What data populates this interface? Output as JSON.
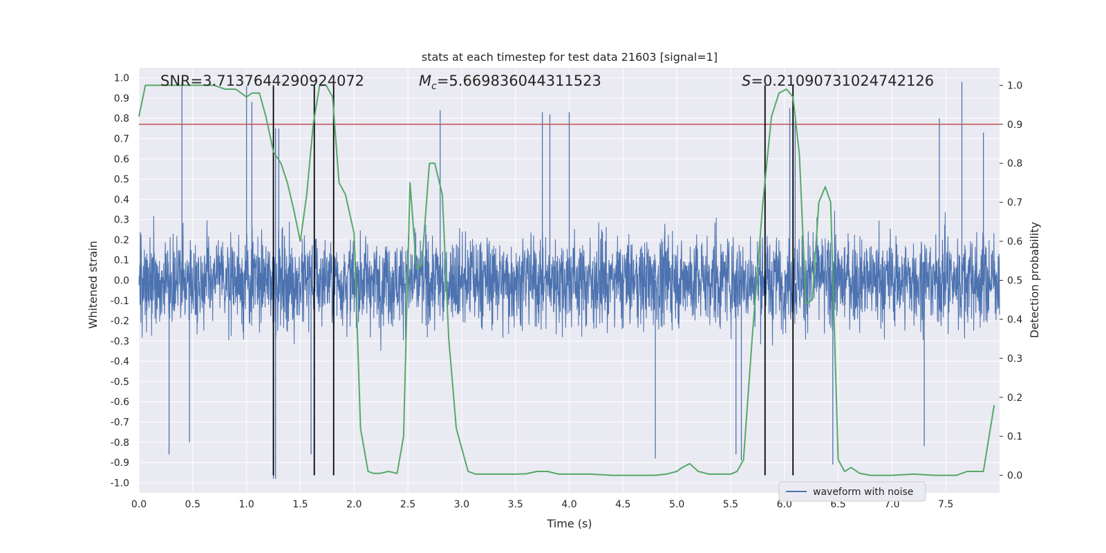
{
  "chart_data": {
    "type": "line",
    "title": "stats at each timestep for test data 21603 [signal=1]",
    "xlabel": "Time (s)",
    "ylabel": "Whitened strain",
    "y2label": "Detection probability",
    "xlim": [
      0.0,
      8.0
    ],
    "ylim": [
      -1.05,
      1.05
    ],
    "y2lim": [
      -0.045,
      1.045
    ],
    "xticks": [
      "0.0",
      "0.5",
      "1.0",
      "1.5",
      "2.0",
      "2.5",
      "3.0",
      "3.5",
      "4.0",
      "4.5",
      "5.0",
      "5.5",
      "6.0",
      "6.5",
      "7.0",
      "7.5"
    ],
    "yticks": [
      "-1.0",
      "-0.9",
      "-0.8",
      "-0.7",
      "-0.6",
      "-0.5",
      "-0.4",
      "-0.3",
      "-0.2",
      "-0.1",
      "0.0",
      "0.1",
      "0.2",
      "0.3",
      "0.4",
      "0.5",
      "0.6",
      "0.7",
      "0.8",
      "0.9",
      "1.0"
    ],
    "y2ticks": [
      "0.0",
      "0.1",
      "0.2",
      "0.3",
      "0.4",
      "0.5",
      "0.6",
      "0.7",
      "0.8",
      "0.9",
      "1.0"
    ],
    "grid": true,
    "legend": {
      "position": "lower-right",
      "entries": [
        "waveform with noise"
      ]
    },
    "annotations": {
      "snr": "SNR=3.7137644290924072",
      "mc_symbol": "M",
      "mc_sub": "c",
      "mc_value": "=5.669836044311523",
      "s_symbol": "S",
      "s_value": "=0.21090731024742126"
    },
    "threshold": {
      "axis": "right",
      "value": 0.9,
      "color": "#c44e52"
    },
    "vlines": [
      1.25,
      1.63,
      1.81,
      5.82,
      6.08
    ],
    "series": [
      {
        "name": "waveform with noise",
        "axis": "left",
        "color": "#4c72b0",
        "note_samples": "dense noise trace spanning approx -0.4..0.4 with spikes to about ±1.0",
        "spikes": [
          [
            0.4,
            0.98
          ],
          [
            1.0,
            0.96
          ],
          [
            1.05,
            0.88
          ],
          [
            1.27,
            0.75
          ],
          [
            1.3,
            0.75
          ],
          [
            2.8,
            0.84
          ],
          [
            4.0,
            0.83
          ],
          [
            3.75,
            0.83
          ],
          [
            3.82,
            0.82
          ],
          [
            6.05,
            0.85
          ],
          [
            6.1,
            0.79
          ],
          [
            7.44,
            0.8
          ],
          [
            7.65,
            0.98
          ],
          [
            7.85,
            0.73
          ],
          [
            0.28,
            -0.86
          ],
          [
            0.47,
            -0.8
          ],
          [
            1.25,
            -0.98
          ],
          [
            1.27,
            -0.98
          ],
          [
            1.6,
            -0.86
          ],
          [
            5.55,
            -0.86
          ],
          [
            5.6,
            -0.89
          ],
          [
            6.45,
            -0.91
          ],
          [
            4.8,
            -0.88
          ],
          [
            7.3,
            -0.82
          ]
        ]
      },
      {
        "name": "detection probability",
        "axis": "right",
        "color": "#55a868",
        "x": [
          0.0,
          0.06,
          0.12,
          0.2,
          0.3,
          0.4,
          0.5,
          0.6,
          0.7,
          0.8,
          0.9,
          1.0,
          1.05,
          1.12,
          1.18,
          1.25,
          1.32,
          1.38,
          1.44,
          1.5,
          1.56,
          1.62,
          1.68,
          1.74,
          1.8,
          1.86,
          1.92,
          2.0,
          2.06,
          2.13,
          2.18,
          2.24,
          2.32,
          2.4,
          2.46,
          2.52,
          2.58,
          2.63,
          2.7,
          2.75,
          2.82,
          2.88,
          2.95,
          3.06,
          3.13,
          3.2,
          3.3,
          3.4,
          3.5,
          3.6,
          3.7,
          3.8,
          3.9,
          4.0,
          4.2,
          4.4,
          4.6,
          4.8,
          4.9,
          5.0,
          5.05,
          5.12,
          5.2,
          5.3,
          5.4,
          5.5,
          5.56,
          5.62,
          5.7,
          5.8,
          5.88,
          5.95,
          6.02,
          6.08,
          6.14,
          6.2,
          6.26,
          6.32,
          6.38,
          6.43,
          6.5,
          6.56,
          6.62,
          6.7,
          6.8,
          6.9,
          7.0,
          7.2,
          7.4,
          7.6,
          7.7,
          7.85,
          7.95
        ],
        "y": [
          0.92,
          1.0,
          1.0,
          1.0,
          1.0,
          1.0,
          1.0,
          1.0,
          1.0,
          0.99,
          0.99,
          0.97,
          0.98,
          0.98,
          0.92,
          0.83,
          0.8,
          0.75,
          0.68,
          0.6,
          0.72,
          0.9,
          1.0,
          1.0,
          0.97,
          0.75,
          0.72,
          0.62,
          0.12,
          0.01,
          0.005,
          0.005,
          0.01,
          0.005,
          0.1,
          0.75,
          0.53,
          0.54,
          0.8,
          0.8,
          0.72,
          0.35,
          0.12,
          0.01,
          0.003,
          0.003,
          0.003,
          0.003,
          0.003,
          0.004,
          0.01,
          0.01,
          0.003,
          0.003,
          0.003,
          0.0,
          0.0,
          0.0,
          0.003,
          0.01,
          0.02,
          0.03,
          0.01,
          0.003,
          0.003,
          0.003,
          0.01,
          0.04,
          0.35,
          0.7,
          0.92,
          0.98,
          0.99,
          0.97,
          0.82,
          0.44,
          0.45,
          0.7,
          0.74,
          0.7,
          0.04,
          0.01,
          0.02,
          0.005,
          0.0,
          0.0,
          0.0,
          0.003,
          0.0,
          0.0,
          0.01,
          0.01,
          0.18
        ]
      }
    ]
  }
}
